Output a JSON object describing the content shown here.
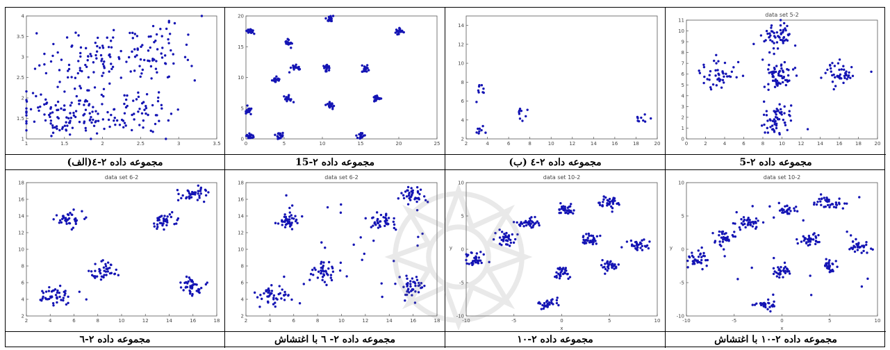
{
  "captions": [
    "مجموعه داده ۲-٤(الف)",
    "مجموعه داده ۲-15",
    "مجموعه داده ۲-٤ (ب)",
    "مجموعه داده ۲-5",
    "مجموعه داده ۲-٦",
    "مجموعه داده ۲- ٦ با اغتشاش",
    "مجموعه داده ۲-۱۰",
    "مجموعه داده ۲-۱۰ با اغتشاش"
  ],
  "colors": {
    "point": "#1414b4",
    "axis": "#555555",
    "tick": "#444444"
  },
  "chart_data": [
    {
      "type": "scatter",
      "caption_index": 0,
      "xlim": [
        1,
        3.5
      ],
      "ylim": [
        1,
        4
      ],
      "xticks": [
        "1",
        "1.5",
        "2",
        "2.5",
        "3",
        "3.5"
      ],
      "yticks": [
        "1",
        "1.5",
        "2",
        "2.5",
        "3",
        "3.5",
        "4"
      ],
      "clusters": [
        {
          "cx": 1.5,
          "cy": 1.6,
          "sx": 0.35,
          "sy": 0.28,
          "n": 120
        },
        {
          "cx": 2.4,
          "cy": 1.7,
          "sx": 0.3,
          "sy": 0.3,
          "n": 60
        },
        {
          "cx": 1.8,
          "cy": 2.9,
          "sx": 0.35,
          "sy": 0.35,
          "n": 80
        },
        {
          "cx": 2.7,
          "cy": 3.2,
          "sx": 0.3,
          "sy": 0.4,
          "n": 70
        }
      ]
    },
    {
      "type": "scatter",
      "caption_index": 1,
      "xlim": [
        0,
        25
      ],
      "ylim": [
        0,
        20
      ],
      "xticks": [
        "0",
        "5",
        "10",
        "15",
        "20",
        "25"
      ],
      "yticks": [
        "0",
        "5",
        "10",
        "15",
        "20"
      ],
      "clusters": [
        {
          "cx": 0.5,
          "cy": 17.5,
          "sx": 0.25,
          "sy": 0.25,
          "n": 20
        },
        {
          "cx": 11,
          "cy": 19.5,
          "sx": 0.25,
          "sy": 0.25,
          "n": 20
        },
        {
          "cx": 20,
          "cy": 17.5,
          "sx": 0.25,
          "sy": 0.25,
          "n": 20
        },
        {
          "cx": 5.5,
          "cy": 15.5,
          "sx": 0.25,
          "sy": 0.25,
          "n": 20
        },
        {
          "cx": 6.5,
          "cy": 11.5,
          "sx": 0.25,
          "sy": 0.25,
          "n": 20
        },
        {
          "cx": 10.5,
          "cy": 11.5,
          "sx": 0.25,
          "sy": 0.25,
          "n": 20
        },
        {
          "cx": 15.5,
          "cy": 11.5,
          "sx": 0.25,
          "sy": 0.25,
          "n": 20
        },
        {
          "cx": 4,
          "cy": 9.5,
          "sx": 0.25,
          "sy": 0.25,
          "n": 20
        },
        {
          "cx": 5.5,
          "cy": 6.5,
          "sx": 0.25,
          "sy": 0.25,
          "n": 20
        },
        {
          "cx": 11,
          "cy": 5.5,
          "sx": 0.25,
          "sy": 0.25,
          "n": 20
        },
        {
          "cx": 17,
          "cy": 6.5,
          "sx": 0.25,
          "sy": 0.25,
          "n": 20
        },
        {
          "cx": 0.3,
          "cy": 4.5,
          "sx": 0.25,
          "sy": 0.25,
          "n": 20
        },
        {
          "cx": 0.5,
          "cy": 0.5,
          "sx": 0.25,
          "sy": 0.25,
          "n": 20
        },
        {
          "cx": 4.5,
          "cy": 0.5,
          "sx": 0.25,
          "sy": 0.25,
          "n": 20
        },
        {
          "cx": 15,
          "cy": 0.5,
          "sx": 0.25,
          "sy": 0.25,
          "n": 20
        }
      ]
    },
    {
      "type": "scatter",
      "caption_index": 2,
      "xlim": [
        2,
        20
      ],
      "ylim": [
        2,
        15
      ],
      "xticks": [
        "2",
        "4",
        "6",
        "8",
        "10",
        "12",
        "14",
        "16",
        "18",
        "20"
      ],
      "yticks": [
        "2",
        "4",
        "6",
        "8",
        "10",
        "12",
        "14"
      ],
      "clusters": [
        {
          "cx": 3.5,
          "cy": 7.3,
          "sx": 0.35,
          "sy": 0.4,
          "n": 9
        },
        {
          "cx": 3.3,
          "cy": 3,
          "sx": 0.35,
          "sy": 0.4,
          "n": 8
        },
        {
          "cx": 7.5,
          "cy": 4.7,
          "sx": 0.4,
          "sy": 0.4,
          "n": 9
        },
        {
          "cx": 18.5,
          "cy": 4.2,
          "sx": 0.4,
          "sy": 0.35,
          "n": 9
        }
      ]
    },
    {
      "type": "scatter",
      "caption_index": 3,
      "title": "data set 5-2",
      "xlim": [
        0,
        20
      ],
      "ylim": [
        0,
        11
      ],
      "xticks": [
        "0",
        "2",
        "4",
        "6",
        "8",
        "10",
        "12",
        "14",
        "16",
        "18",
        "20"
      ],
      "yticks": [
        "0",
        "1",
        "2",
        "3",
        "4",
        "5",
        "6",
        "7",
        "8",
        "9",
        "10",
        "11"
      ],
      "clusters": [
        {
          "cx": 9.5,
          "cy": 9.5,
          "sx": 0.9,
          "sy": 0.7,
          "n": 55
        },
        {
          "cx": 3.5,
          "cy": 6,
          "sx": 1,
          "sy": 0.6,
          "n": 45
        },
        {
          "cx": 9.5,
          "cy": 6,
          "sx": 0.9,
          "sy": 0.7,
          "n": 60
        },
        {
          "cx": 16,
          "cy": 6,
          "sx": 1,
          "sy": 0.6,
          "n": 45
        },
        {
          "cx": 9.5,
          "cy": 1.8,
          "sx": 0.9,
          "sy": 0.8,
          "n": 60
        }
      ]
    },
    {
      "type": "scatter",
      "caption_index": 4,
      "title": "data set 6-2",
      "xlim": [
        2,
        18
      ],
      "ylim": [
        2,
        18
      ],
      "xticks": [
        "2",
        "4",
        "6",
        "8",
        "10",
        "12",
        "14",
        "16",
        "18"
      ],
      "yticks": [
        "2",
        "4",
        "6",
        "8",
        "10",
        "12",
        "14",
        "16",
        "18"
      ],
      "clusters": [
        {
          "cx": 5.5,
          "cy": 13.5,
          "sx": 0.55,
          "sy": 0.5,
          "n": 40
        },
        {
          "cx": 13.5,
          "cy": 13.5,
          "sx": 0.65,
          "sy": 0.5,
          "n": 40
        },
        {
          "cx": 16,
          "cy": 16.5,
          "sx": 0.55,
          "sy": 0.5,
          "n": 40
        },
        {
          "cx": 8.5,
          "cy": 7.3,
          "sx": 0.6,
          "sy": 0.6,
          "n": 40
        },
        {
          "cx": 4.3,
          "cy": 4.3,
          "sx": 0.7,
          "sy": 0.6,
          "n": 45
        },
        {
          "cx": 16,
          "cy": 5.5,
          "sx": 0.55,
          "sy": 0.6,
          "n": 40
        }
      ]
    },
    {
      "type": "scatter",
      "caption_index": 5,
      "title": "data set 6-2",
      "xlim": [
        2,
        18
      ],
      "ylim": [
        2,
        18
      ],
      "xticks": [
        "2",
        "4",
        "6",
        "8",
        "10",
        "12",
        "14",
        "16",
        "18"
      ],
      "yticks": [
        "2",
        "4",
        "6",
        "8",
        "10",
        "12",
        "14",
        "16",
        "18"
      ],
      "clusters": [
        {
          "cx": 5.5,
          "cy": 13.5,
          "sx": 0.55,
          "sy": 0.5,
          "n": 40
        },
        {
          "cx": 13.5,
          "cy": 13.5,
          "sx": 0.65,
          "sy": 0.5,
          "n": 40
        },
        {
          "cx": 16,
          "cy": 16.5,
          "sx": 0.55,
          "sy": 0.5,
          "n": 40
        },
        {
          "cx": 8.5,
          "cy": 7.3,
          "sx": 0.6,
          "sy": 0.6,
          "n": 40
        },
        {
          "cx": 4.3,
          "cy": 4.3,
          "sx": 0.7,
          "sy": 0.6,
          "n": 45
        },
        {
          "cx": 16,
          "cy": 5.5,
          "sx": 0.55,
          "sy": 0.6,
          "n": 40
        }
      ],
      "noise": 30
    },
    {
      "type": "scatter",
      "caption_index": 6,
      "title": "data set 10-2",
      "xlabel": "x",
      "ylabel": "y",
      "xlim": [
        -10,
        10
      ],
      "ylim": [
        -10,
        10
      ],
      "xticks": [
        "-10",
        "-5",
        "0",
        "5",
        "10"
      ],
      "yticks": [
        "-10",
        "-5",
        "0",
        "5",
        "10"
      ],
      "clusters": [
        {
          "cx": -9,
          "cy": -1.5,
          "sx": 0.6,
          "sy": 0.6,
          "n": 35
        },
        {
          "cx": -6,
          "cy": 1.5,
          "sx": 0.6,
          "sy": 0.6,
          "n": 35
        },
        {
          "cx": -3.5,
          "cy": 4,
          "sx": 0.6,
          "sy": 0.45,
          "n": 35
        },
        {
          "cx": 0.5,
          "cy": 6,
          "sx": 0.4,
          "sy": 0.5,
          "n": 30
        },
        {
          "cx": 5,
          "cy": 7,
          "sx": 0.6,
          "sy": 0.45,
          "n": 35
        },
        {
          "cx": 3,
          "cy": 1.5,
          "sx": 0.6,
          "sy": 0.45,
          "n": 35
        },
        {
          "cx": 8,
          "cy": 0.5,
          "sx": 0.5,
          "sy": 0.5,
          "n": 30
        },
        {
          "cx": 5,
          "cy": -2.5,
          "sx": 0.4,
          "sy": 0.5,
          "n": 30
        },
        {
          "cx": 0,
          "cy": -3.5,
          "sx": 0.4,
          "sy": 0.5,
          "n": 30
        },
        {
          "cx": -1.5,
          "cy": -8.2,
          "sx": 0.5,
          "sy": 0.35,
          "n": 30
        }
      ]
    },
    {
      "type": "scatter",
      "caption_index": 7,
      "title": "data set 10-2",
      "xlabel": "x",
      "ylabel": "y",
      "xlim": [
        -10,
        10
      ],
      "ylim": [
        -10,
        10
      ],
      "xticks": [
        "-10",
        "-5",
        "0",
        "5",
        "10"
      ],
      "yticks": [
        "-10",
        "-5",
        "0",
        "5",
        "10"
      ],
      "clusters": [
        {
          "cx": -9,
          "cy": -1.5,
          "sx": 0.6,
          "sy": 0.6,
          "n": 35
        },
        {
          "cx": -6,
          "cy": 1.5,
          "sx": 0.6,
          "sy": 0.6,
          "n": 35
        },
        {
          "cx": -3.5,
          "cy": 4,
          "sx": 0.6,
          "sy": 0.45,
          "n": 35
        },
        {
          "cx": 0.5,
          "cy": 6,
          "sx": 0.4,
          "sy": 0.5,
          "n": 30
        },
        {
          "cx": 5,
          "cy": 7,
          "sx": 0.6,
          "sy": 0.45,
          "n": 35
        },
        {
          "cx": 3,
          "cy": 1.5,
          "sx": 0.6,
          "sy": 0.45,
          "n": 35
        },
        {
          "cx": 8,
          "cy": 0.5,
          "sx": 0.5,
          "sy": 0.5,
          "n": 30
        },
        {
          "cx": 5,
          "cy": -2.5,
          "sx": 0.4,
          "sy": 0.5,
          "n": 30
        },
        {
          "cx": 0,
          "cy": -3.5,
          "sx": 0.4,
          "sy": 0.5,
          "n": 30
        },
        {
          "cx": -1.5,
          "cy": -8.2,
          "sx": 0.5,
          "sy": 0.35,
          "n": 30
        }
      ],
      "noise": 25
    }
  ]
}
